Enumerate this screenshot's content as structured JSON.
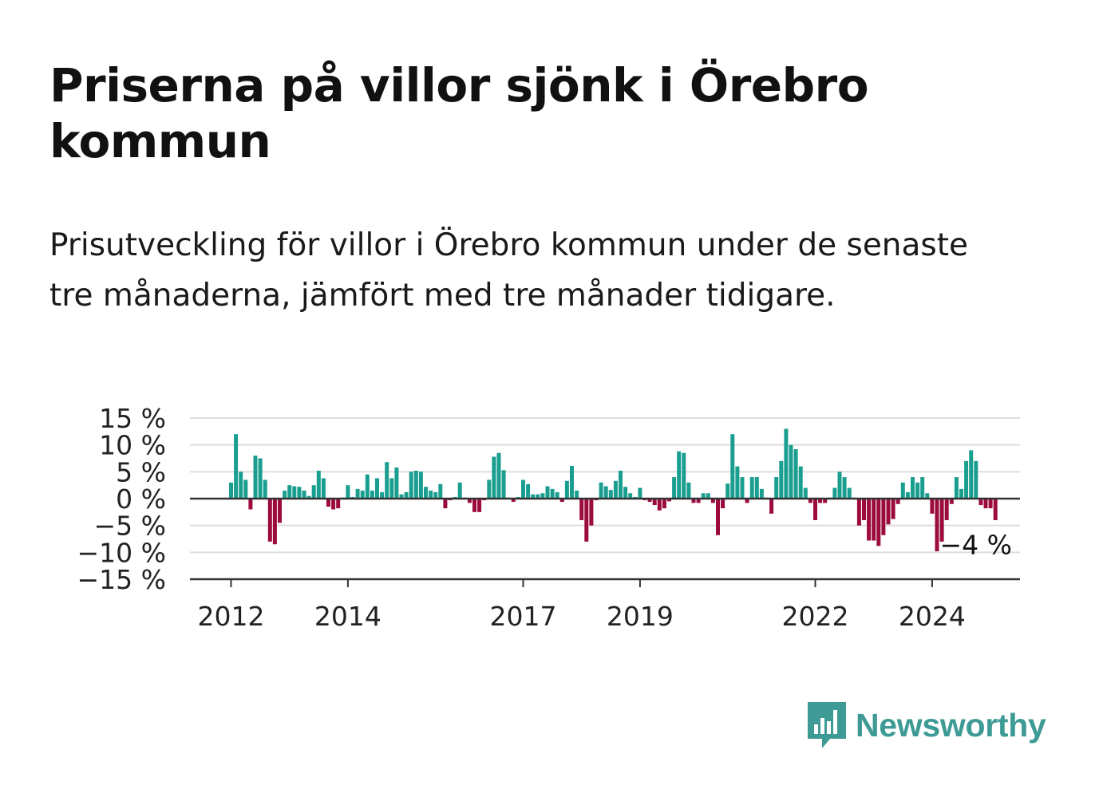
{
  "title": "Priserna på villor sjönk i Örebro kommun",
  "subtitle": "Prisutveckling för villor i Örebro kommun under de senaste tre månaderna, jämfört med tre månader tidigare.",
  "logo": {
    "text": "Newsworthy",
    "icon": "newsworthy-chart-bubble-icon"
  },
  "colors": {
    "positive": "#1a9e8f",
    "negative": "#9c0b3e",
    "grid": "#dddddd",
    "axis": "#333333",
    "logo": "#3d9a94"
  },
  "chart_data": {
    "type": "bar",
    "x_start": "2012-01",
    "x_interval": "month",
    "ylim": [
      -15,
      15
    ],
    "y_ticks": [
      15,
      10,
      5,
      0,
      -5,
      -10,
      -15
    ],
    "y_tick_labels": [
      "15 %",
      "10 %",
      "5 %",
      "0 %",
      "−5 %",
      "−10 %",
      "−15 %"
    ],
    "x_tick_labels": [
      "2012",
      "2014",
      "2017",
      "2019",
      "2022",
      "2024"
    ],
    "x_tick_dates": [
      "2012-01",
      "2014-01",
      "2017-01",
      "2019-01",
      "2022-01",
      "2024-01"
    ],
    "grid": true,
    "last_value_label": "−4 %",
    "values": [
      3,
      12,
      5,
      3.5,
      -2,
      8,
      7.5,
      3.5,
      -8,
      -8.5,
      -4.5,
      1.5,
      2.5,
      2.3,
      2.2,
      1.5,
      0.5,
      2.5,
      5.2,
      3.8,
      -1.5,
      -2,
      -1.8,
      0.2,
      2.5,
      0.3,
      1.8,
      1.5,
      4.5,
      1.5,
      3.8,
      1.2,
      6.8,
      3.8,
      5.8,
      0.8,
      1.2,
      5,
      5.2,
      5,
      2.2,
      1.5,
      1.2,
      2.7,
      -1.8,
      -0.3,
      0.3,
      3,
      0.2,
      -0.8,
      -2.5,
      -2.5,
      -0.3,
      3.5,
      7.8,
      8.5,
      5.3,
      0.2,
      -0.6,
      0.3,
      3.5,
      2.7,
      0.8,
      0.8,
      1,
      2.3,
      1.8,
      1.2,
      -0.6,
      3.3,
      6.1,
      1.5,
      -4,
      -8,
      -5,
      -0.3,
      3,
      2.3,
      1.6,
      3.3,
      5.2,
      2.2,
      1,
      0.3,
      2,
      -0.3,
      -0.6,
      -1.2,
      -2.2,
      -1.8,
      -0.5,
      4,
      8.8,
      8.5,
      3,
      -0.8,
      -0.8,
      1,
      1,
      -0.8,
      -6.8,
      -1.8,
      2.8,
      12,
      6,
      4,
      -0.8,
      4,
      4,
      1.8,
      0.2,
      -2.8,
      4,
      7,
      13,
      10,
      9.2,
      6,
      2,
      -0.8,
      -4,
      -0.8,
      -0.8,
      0.2,
      2,
      5,
      4,
      2,
      0.2,
      -5,
      -4,
      -7.8,
      -7.8,
      -8.8,
      -6.8,
      -4.8,
      -3.8,
      -1,
      3,
      1.2,
      4,
      3,
      4,
      1,
      -2.8,
      -9.8,
      -8,
      -4,
      -1,
      4,
      1.8,
      7,
      9,
      7,
      -1.2,
      -1.8,
      -1.8,
      -4
    ]
  }
}
